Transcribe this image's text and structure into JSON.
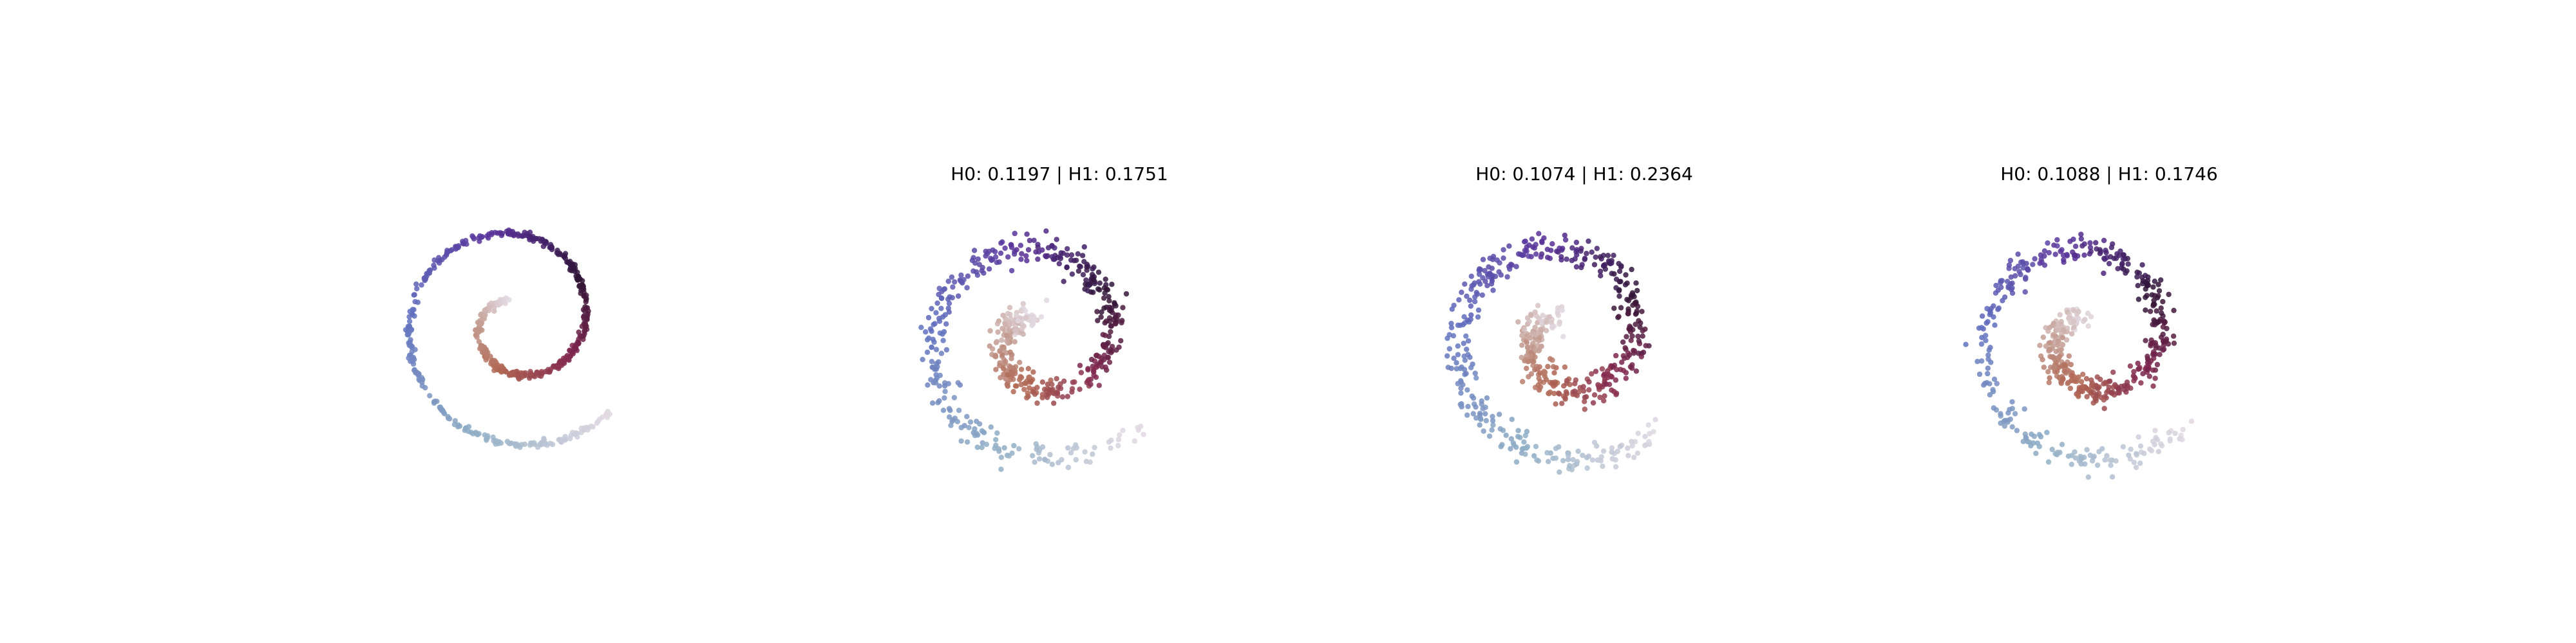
{
  "chart_data": [
    {
      "type": "scatter",
      "title": "",
      "xlim": [
        -1.05,
        1.05
      ],
      "ylim": [
        -1.05,
        1.05
      ],
      "grid": false,
      "axes_visible": false,
      "colormap": "twilight",
      "spiral": {
        "theta_start": 2.0,
        "theta_end": 11.8,
        "n_points": 600,
        "noise": 0.012,
        "seed": 11
      }
    },
    {
      "type": "scatter",
      "title": "H0: 0.1197 | H1: 0.1751",
      "xlim": [
        -1.05,
        1.05
      ],
      "ylim": [
        -1.05,
        1.05
      ],
      "grid": false,
      "axes_visible": false,
      "colormap": "twilight",
      "spiral": {
        "theta_start": 2.0,
        "theta_end": 11.8,
        "n_points": 600,
        "noise": 0.05,
        "seed": 23
      }
    },
    {
      "type": "scatter",
      "title": "H0: 0.1074 | H1: 0.2364",
      "xlim": [
        -1.05,
        1.05
      ],
      "ylim": [
        -1.05,
        1.05
      ],
      "grid": false,
      "axes_visible": false,
      "colormap": "twilight",
      "spiral": {
        "theta_start": 2.0,
        "theta_end": 11.8,
        "n_points": 600,
        "noise": 0.055,
        "seed": 37
      }
    },
    {
      "type": "scatter",
      "title": "H0: 0.1088 | H1: 0.1746",
      "xlim": [
        -1.05,
        1.05
      ],
      "ylim": [
        -1.05,
        1.05
      ],
      "grid": false,
      "axes_visible": false,
      "colormap": "twilight",
      "spiral": {
        "theta_start": 2.0,
        "theta_end": 11.8,
        "n_points": 600,
        "noise": 0.05,
        "seed": 53
      }
    }
  ]
}
